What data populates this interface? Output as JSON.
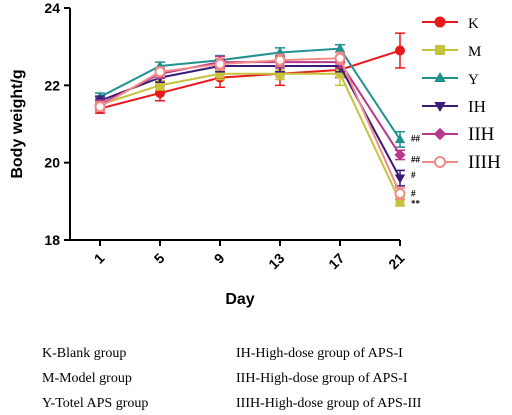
{
  "chart_data": {
    "type": "line",
    "ylabel": "Body weight/g",
    "xlabel": "Day",
    "x": [
      1,
      5,
      9,
      13,
      17,
      21
    ],
    "x_ticks": [
      "1",
      "5",
      "9",
      "13",
      "17",
      "21"
    ],
    "ylim": [
      18,
      24
    ],
    "y_ticks": [
      "18",
      "20",
      "22",
      "24"
    ],
    "grid": false,
    "legend_position": "right",
    "series": [
      {
        "name": "K",
        "color": "#e8191c",
        "marker": "circle",
        "values": [
          21.4,
          21.8,
          22.2,
          22.3,
          22.4,
          22.9
        ],
        "errors": [
          0.12,
          0.2,
          0.25,
          0.3,
          0.2,
          0.45
        ]
      },
      {
        "name": "M",
        "color": "#c7c23c",
        "marker": "square",
        "values": [
          21.5,
          22.0,
          22.3,
          22.3,
          22.3,
          19.0
        ],
        "errors": [
          0.1,
          0.12,
          0.15,
          0.15,
          0.3,
          0.12
        ]
      },
      {
        "name": "Y",
        "color": "#21918f",
        "marker": "triangle-up",
        "values": [
          21.7,
          22.5,
          22.65,
          22.85,
          22.95,
          20.6
        ],
        "errors": [
          0.1,
          0.1,
          0.12,
          0.12,
          0.1,
          0.2
        ]
      },
      {
        "name": "IH",
        "color": "#3a1a78",
        "marker": "triangle-down",
        "values": [
          21.6,
          22.2,
          22.5,
          22.5,
          22.5,
          19.6
        ],
        "errors": [
          0.12,
          0.12,
          0.15,
          0.15,
          0.15,
          0.2
        ]
      },
      {
        "name": "IIH",
        "color": "#b8378f",
        "marker": "diamond",
        "values": [
          21.5,
          22.3,
          22.6,
          22.6,
          22.6,
          20.2
        ],
        "errors": [
          0.12,
          0.12,
          0.15,
          0.15,
          0.15,
          0.12
        ]
      },
      {
        "name": "IIIH",
        "color": "#f28b86",
        "marker": "open-circle",
        "values": [
          21.45,
          22.35,
          22.55,
          22.65,
          22.7,
          19.2
        ],
        "errors": [
          0.12,
          0.12,
          0.15,
          0.15,
          0.15,
          0.15
        ]
      }
    ],
    "annotations": [
      {
        "text": "##",
        "x": 21,
        "y": 20.62
      },
      {
        "text": "##",
        "x": 21,
        "y": 20.08
      },
      {
        "text": "#",
        "x": 21,
        "y": 19.68
      },
      {
        "text": "#",
        "x": 21,
        "y": 19.2
      },
      {
        "text": "**",
        "x": 21,
        "y": 18.95
      }
    ]
  },
  "caption": {
    "left": [
      "K-Blank group",
      "M-Model group",
      "Y-Totel APS group"
    ],
    "right": [
      "IH-High-dose group of APS-I",
      "IIH-High-dose group of APS-I",
      "IIIH-High-dose group of APS-III"
    ]
  }
}
